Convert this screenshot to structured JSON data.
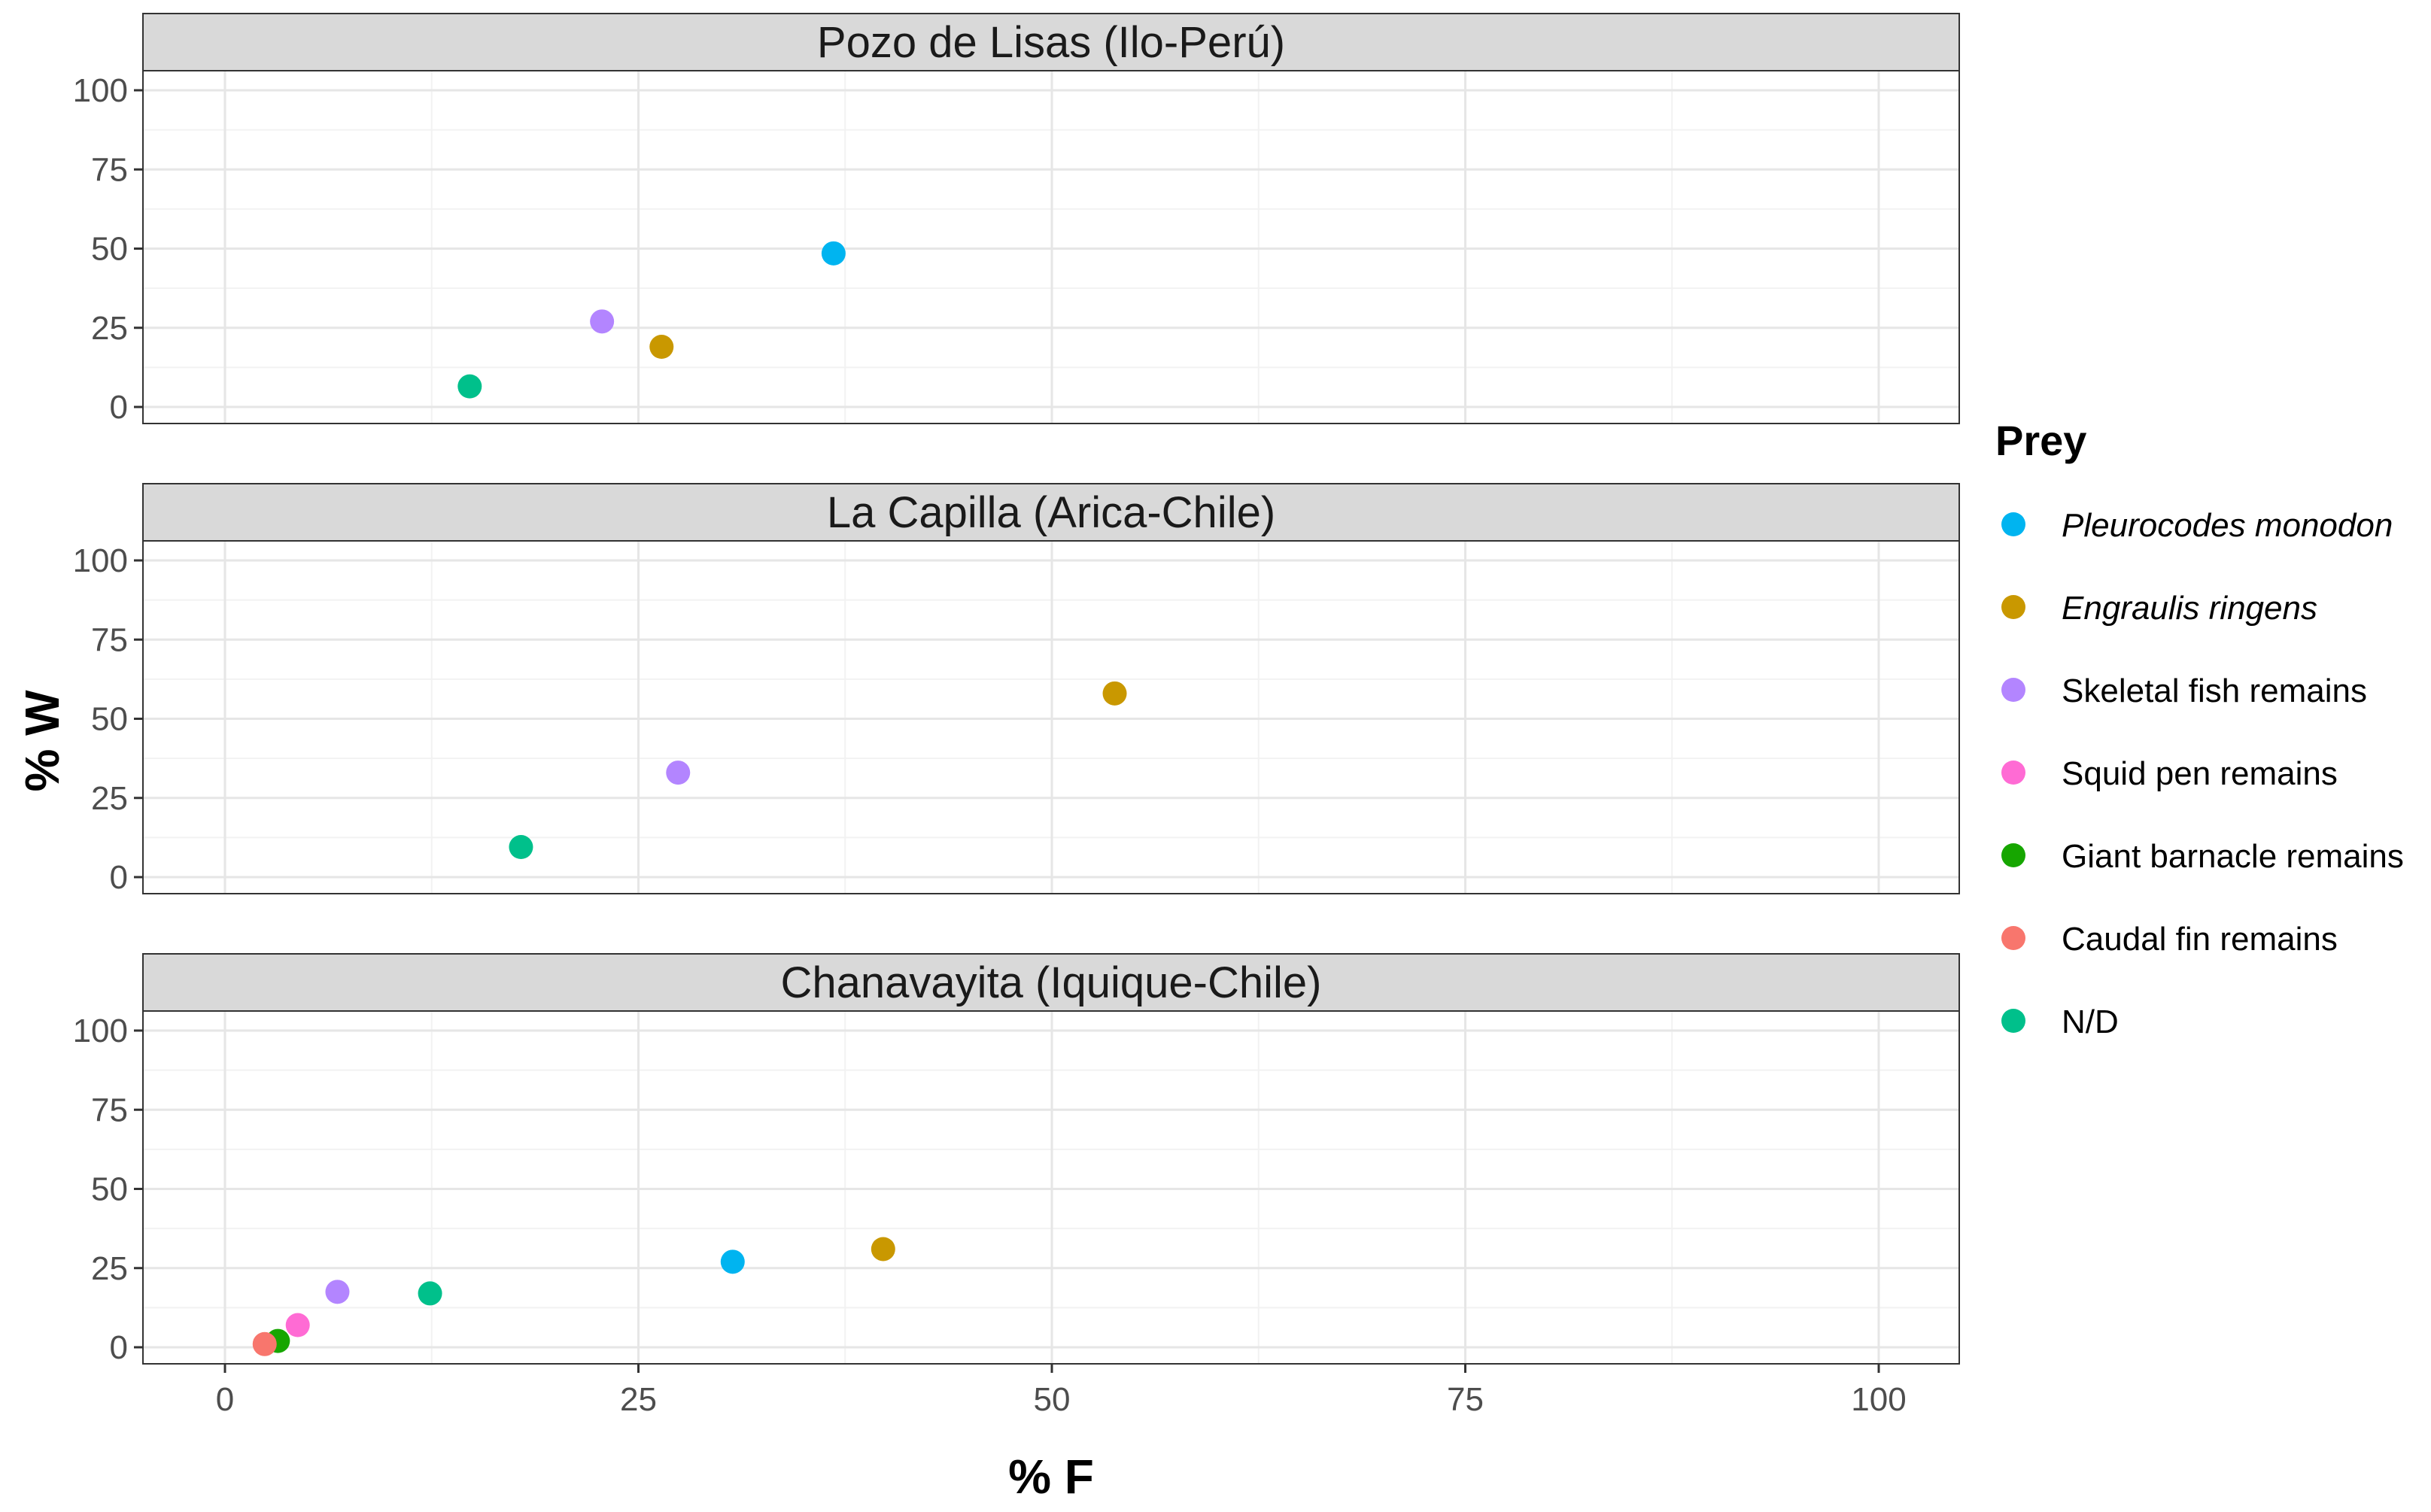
{
  "chart_data": {
    "type": "scatter",
    "xlabel": "% F",
    "ylabel": "% W",
    "xlim": [
      0,
      100
    ],
    "ylim": [
      0,
      100
    ],
    "x_ticks": [
      "0",
      "25",
      "50",
      "75",
      "100"
    ],
    "y_ticks": [
      "0",
      "25",
      "50",
      "75",
      "100"
    ],
    "grid": true,
    "legend": {
      "title": "Prey",
      "position": "right",
      "entries": [
        {
          "name": "Pleurocodes monodon",
          "color": "#00B4F0",
          "italic": true
        },
        {
          "name": "Engraulis ringens",
          "color": "#C99800",
          "italic": true
        },
        {
          "name": "Skeletal fish remains",
          "color": "#B385FF",
          "italic": false
        },
        {
          "name": "Squid pen remains",
          "color": "#FF6BD4",
          "italic": false
        },
        {
          "name": "Giant barnacle remains",
          "color": "#16A600",
          "italic": false
        },
        {
          "name": "Caudal fin remains",
          "color": "#F8766D",
          "italic": false
        },
        {
          "name": "N/D",
          "color": "#00C08B",
          "italic": false
        }
      ]
    },
    "panels": [
      {
        "title": "Pozo de Lisas (Ilo-Perú)",
        "points": [
          {
            "series": "Pleurocodes monodon",
            "x": 36.8,
            "y": 48.5
          },
          {
            "series": "Engraulis ringens",
            "x": 26.4,
            "y": 19
          },
          {
            "series": "Skeletal fish remains",
            "x": 22.8,
            "y": 27
          },
          {
            "series": "N/D",
            "x": 14.8,
            "y": 6.5
          }
        ]
      },
      {
        "title": "La Capilla (Arica-Chile)",
        "points": [
          {
            "series": "Engraulis ringens",
            "x": 53.8,
            "y": 58
          },
          {
            "series": "Skeletal fish remains",
            "x": 27.4,
            "y": 33
          },
          {
            "series": "N/D",
            "x": 17.9,
            "y": 9.5
          }
        ]
      },
      {
        "title": "Chanavayita (Iquique-Chile)",
        "points": [
          {
            "series": "Engraulis ringens",
            "x": 39.8,
            "y": 31
          },
          {
            "series": "Pleurocodes monodon",
            "x": 30.7,
            "y": 27
          },
          {
            "series": "Skeletal fish remains",
            "x": 6.8,
            "y": 17.5
          },
          {
            "series": "N/D",
            "x": 12.4,
            "y": 17
          },
          {
            "series": "Squid pen remains",
            "x": 4.4,
            "y": 7
          },
          {
            "series": "Giant barnacle remains",
            "x": 3.2,
            "y": 2
          },
          {
            "series": "Caudal fin remains",
            "x": 2.4,
            "y": 1
          }
        ]
      }
    ]
  }
}
